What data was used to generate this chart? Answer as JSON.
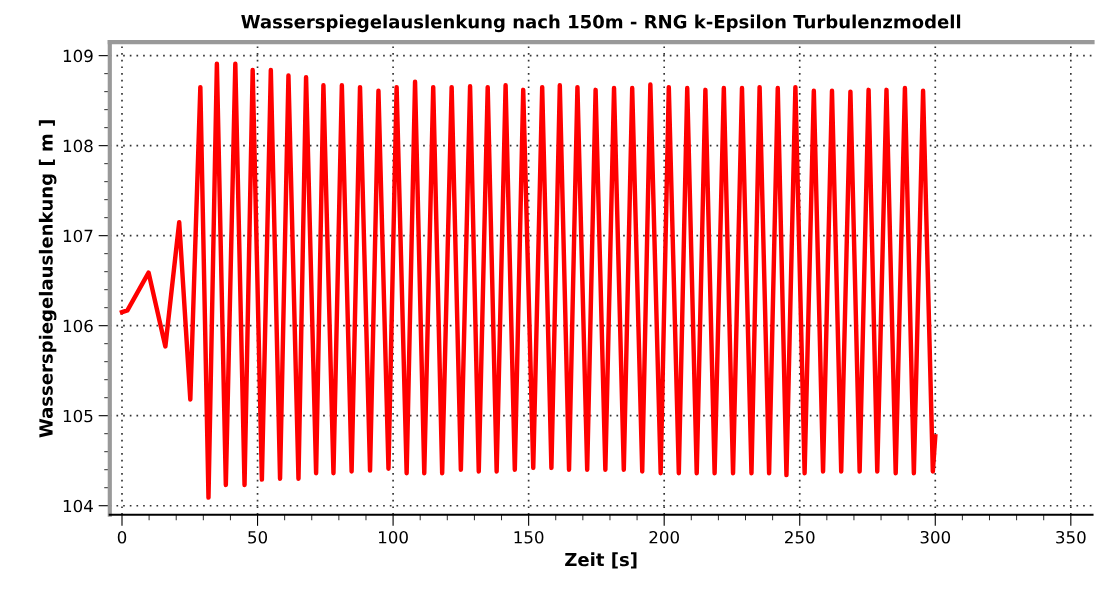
{
  "chart_data": {
    "type": "line",
    "title": "Wasserspiegelauslenkung nach 150m - RNG k-Epsilon Turbulenzmodell",
    "xlabel": "Zeit [s]",
    "ylabel": "Wasserspiegelauslenkung [ m ]",
    "xlim": [
      -4.5,
      358
    ],
    "ylim": [
      103.9,
      109.15
    ],
    "xticks": [
      0,
      50,
      100,
      150,
      200,
      250,
      300,
      350
    ],
    "yticks": [
      104,
      105,
      106,
      107,
      108,
      109
    ],
    "grid": true,
    "marker": "none",
    "line_style": "solid",
    "series": [
      {
        "color": "#ff0000",
        "x": [
          0,
          2,
          9.8,
          16.0,
          21.1,
          25.2,
          28.9,
          31.9,
          35.0,
          38.3,
          41.8,
          45.2,
          48.2,
          51.6,
          54.9,
          58.3,
          61.4,
          65.1,
          67.9,
          71.6,
          74.3,
          78.0,
          81.1,
          84.7,
          87.8,
          91.5,
          94.6,
          98.3,
          101.3,
          105.0,
          108.1,
          111.5,
          114.8,
          118.1,
          121.6,
          125.0,
          128.4,
          131.6,
          134.9,
          138.2,
          141.5,
          144.9,
          148.0,
          151.7,
          155.0,
          158.4,
          161.5,
          164.9,
          168.0,
          171.6,
          174.7,
          178.3,
          181.5,
          185.1,
          188.2,
          191.9,
          194.9,
          198.7,
          201.7,
          205.4,
          208.5,
          212.0,
          215.2,
          218.6,
          222.0,
          225.4,
          228.7,
          232.2,
          235.2,
          238.7,
          241.9,
          245.1,
          248.4,
          251.8,
          255.2,
          258.6,
          261.9,
          265.3,
          268.7,
          272.1,
          275.4,
          278.6,
          282.0,
          285.4,
          288.8,
          292.1,
          295.5,
          299.1,
          300
        ],
        "values": [
          106.15,
          106.17,
          106.59,
          105.77,
          107.15,
          105.18,
          108.65,
          104.09,
          108.91,
          104.23,
          108.91,
          104.23,
          108.84,
          104.29,
          108.84,
          104.3,
          108.78,
          104.3,
          108.76,
          104.36,
          108.67,
          104.36,
          108.67,
          104.38,
          108.65,
          104.39,
          108.61,
          104.41,
          108.65,
          104.36,
          108.71,
          104.36,
          108.65,
          104.36,
          108.65,
          104.4,
          108.66,
          104.38,
          108.65,
          104.38,
          108.67,
          104.4,
          108.62,
          104.42,
          108.65,
          104.42,
          108.67,
          104.4,
          108.65,
          104.4,
          108.62,
          104.4,
          108.64,
          104.4,
          108.64,
          104.38,
          108.68,
          104.36,
          108.65,
          104.36,
          108.64,
          104.36,
          108.62,
          104.36,
          108.64,
          104.36,
          108.64,
          104.36,
          108.65,
          104.36,
          108.64,
          104.34,
          108.65,
          104.36,
          108.61,
          104.38,
          108.61,
          104.38,
          108.6,
          104.38,
          108.62,
          104.38,
          108.62,
          104.36,
          108.64,
          104.36,
          108.61,
          104.38,
          104.77
        ]
      }
    ]
  }
}
